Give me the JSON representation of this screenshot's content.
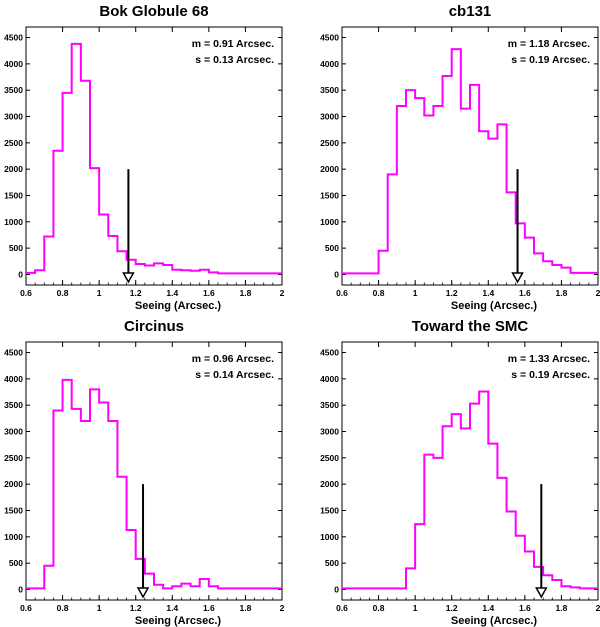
{
  "colors": {
    "series": "#ff00ff",
    "axis": "#000000",
    "arrow": "#000000",
    "background": "#ffffff"
  },
  "chart_data": [
    {
      "type": "histogram",
      "title": "Bok Globule 68",
      "xlabel": "Seeing (Arcsec.)",
      "ylabel": "",
      "xlim": [
        0.6,
        2.0
      ],
      "ylim": [
        -200,
        4700
      ],
      "x_ticks": [
        "0.6",
        "0.8",
        "1",
        "1.2",
        "1.4",
        "1.6",
        "1.8",
        "2"
      ],
      "y_ticks": [
        "0",
        "500",
        "1000",
        "1500",
        "2000",
        "2500",
        "3000",
        "3500",
        "4000",
        "4500"
      ],
      "bin_width": 0.05,
      "bin_start": 0.6,
      "counts": [
        30,
        80,
        720,
        2350,
        3450,
        4380,
        3680,
        2020,
        1140,
        730,
        440,
        280,
        200,
        170,
        210,
        180,
        90,
        80,
        70,
        90,
        40,
        20,
        20,
        20,
        20,
        20,
        20,
        20
      ],
      "stats": {
        "mean": "m = 0.91 Arcsec.",
        "sigma": "s = 0.13 Arcsec."
      },
      "marker": {
        "x": 1.16,
        "top_value": 2000
      }
    },
    {
      "type": "histogram",
      "title": "cb131",
      "xlabel": "Seeing (Arcsec.)",
      "ylabel": "",
      "xlim": [
        0.6,
        2.0
      ],
      "ylim": [
        -200,
        4700
      ],
      "x_ticks": [
        "0.6",
        "0.8",
        "1",
        "1.2",
        "1.4",
        "1.6",
        "1.8",
        "2"
      ],
      "y_ticks": [
        "0",
        "500",
        "1000",
        "1500",
        "2000",
        "2500",
        "3000",
        "3500",
        "4000",
        "4500"
      ],
      "bin_width": 0.05,
      "bin_start": 0.6,
      "counts": [
        20,
        20,
        20,
        20,
        450,
        1900,
        3200,
        3500,
        3350,
        3020,
        3200,
        3770,
        4280,
        3150,
        3600,
        2720,
        2580,
        2850,
        1560,
        970,
        700,
        400,
        250,
        180,
        130,
        30,
        30,
        30
      ],
      "stats": {
        "mean": "m = 1.18 Arcsec.",
        "sigma": "s = 0.19 Arcsec."
      },
      "marker": {
        "x": 1.56,
        "top_value": 2000
      }
    },
    {
      "type": "histogram",
      "title": "Circinus",
      "xlabel": "Seeing (Arcsec.)",
      "ylabel": "",
      "xlim": [
        0.6,
        2.0
      ],
      "ylim": [
        -200,
        4700
      ],
      "x_ticks": [
        "0.6",
        "0.8",
        "1",
        "1.2",
        "1.4",
        "1.6",
        "1.8",
        "2"
      ],
      "y_ticks": [
        "0",
        "500",
        "1000",
        "1500",
        "2000",
        "2500",
        "3000",
        "3500",
        "4000",
        "4500"
      ],
      "bin_width": 0.05,
      "bin_start": 0.6,
      "counts": [
        20,
        20,
        450,
        3400,
        3980,
        3430,
        3200,
        3800,
        3550,
        3200,
        2140,
        1130,
        580,
        300,
        90,
        20,
        60,
        110,
        60,
        200,
        60,
        20,
        20,
        20,
        20,
        20,
        20,
        20
      ],
      "stats": {
        "mean": "m = 0.96 Arcsec.",
        "sigma": "s = 0.14 Arcsec."
      },
      "marker": {
        "x": 1.24,
        "top_value": 2000
      }
    },
    {
      "type": "histogram",
      "title": "Toward the SMC",
      "xlabel": "Seeing (Arcsec.)",
      "ylabel": "",
      "xlim": [
        0.6,
        2.0
      ],
      "ylim": [
        -200,
        4700
      ],
      "x_ticks": [
        "0.6",
        "0.8",
        "1",
        "1.2",
        "1.4",
        "1.6",
        "1.8",
        "2"
      ],
      "y_ticks": [
        "0",
        "500",
        "1000",
        "1500",
        "2000",
        "2500",
        "3000",
        "3500",
        "4000",
        "4500"
      ],
      "bin_width": 0.05,
      "bin_start": 0.6,
      "counts": [
        20,
        20,
        20,
        20,
        20,
        20,
        20,
        400,
        1240,
        2560,
        2500,
        3100,
        3330,
        3060,
        3530,
        3760,
        2770,
        2120,
        1480,
        1020,
        720,
        430,
        270,
        180,
        60,
        40,
        20,
        20
      ],
      "stats": {
        "mean": "m = 1.33 Arcsec.",
        "sigma": "s = 0.19 Arcsec."
      },
      "marker": {
        "x": 1.69,
        "top_value": 2000
      }
    }
  ]
}
